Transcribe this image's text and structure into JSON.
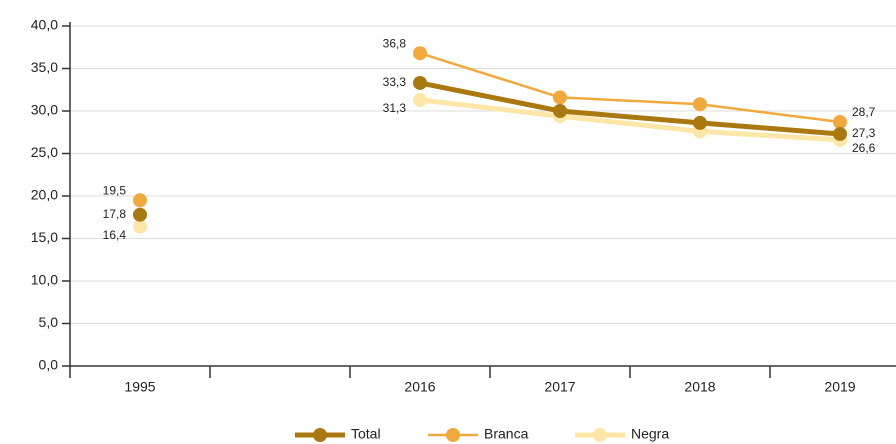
{
  "chart_data": {
    "type": "line",
    "categories": [
      "1995",
      null,
      "2016",
      "2017",
      "2018",
      "2019"
    ],
    "series": [
      {
        "name": "Total",
        "color": "#a9780f",
        "values": [
          17.8,
          null,
          33.3,
          30.0,
          28.6,
          27.3
        ],
        "value_labels": [
          "17,8",
          null,
          "33,3",
          null,
          null,
          "27,3"
        ]
      },
      {
        "name": "Branca",
        "color": "#f2a93b",
        "values": [
          19.5,
          null,
          36.8,
          31.6,
          30.8,
          28.7
        ],
        "value_labels": [
          "19,5",
          null,
          "36,8",
          null,
          null,
          "28,7"
        ]
      },
      {
        "name": "Negra",
        "color": "#fde6a6",
        "values": [
          16.4,
          null,
          31.3,
          29.4,
          27.6,
          26.6
        ],
        "value_labels": [
          "16,4",
          null,
          "31,3",
          null,
          null,
          "26,6"
        ]
      }
    ],
    "ylim": [
      0,
      40
    ],
    "yticks": [
      {
        "value": 0,
        "label": "0,0"
      },
      {
        "value": 5,
        "label": "5,0"
      },
      {
        "value": 10,
        "label": "10,0"
      },
      {
        "value": 15,
        "label": "15,0"
      },
      {
        "value": 20,
        "label": "20,0"
      },
      {
        "value": 25,
        "label": "25,0"
      },
      {
        "value": 30,
        "label": "30,0"
      },
      {
        "value": 35,
        "label": "35,0"
      },
      {
        "value": 40,
        "label": "40,0"
      }
    ],
    "grid": true
  }
}
